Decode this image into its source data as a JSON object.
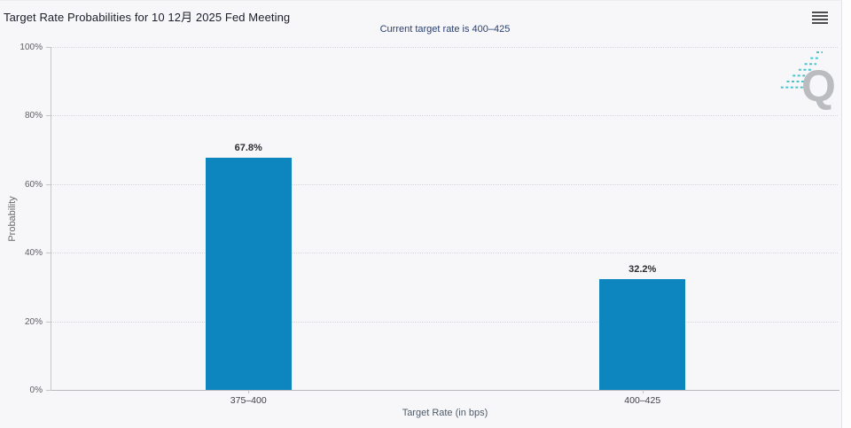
{
  "header": {
    "title": "Target Rate Probabilities for 10 12月 2025 Fed Meeting",
    "subtitle": "Current target rate is 400–425"
  },
  "chart_data": {
    "type": "bar",
    "title": "Target Rate Probabilities for 10 12月 2025 Fed Meeting",
    "subtitle": "Current target rate is 400–425",
    "categories": [
      "375–400",
      "400–425"
    ],
    "values": [
      67.8,
      32.2
    ],
    "data_labels": [
      "67.8%",
      "32.2%"
    ],
    "xlabel": "Target Rate (in bps)",
    "ylabel": "Probability",
    "ylim": [
      0,
      100
    ],
    "yticks": [
      0,
      20,
      40,
      60,
      80,
      100
    ],
    "ytick_labels": [
      "0%",
      "20%",
      "40%",
      "60%",
      "80%",
      "100%"
    ],
    "grid": true,
    "legend": false,
    "bar_color": "#0d86c0"
  },
  "icons": {
    "menu": "hamburger-menu-icon",
    "watermark": "q-logo-watermark"
  },
  "colors": {
    "bar": "#0d86c0",
    "background": "#f7f7f9",
    "title_text": "#1c1e2b",
    "subtitle_text": "#2b4170",
    "watermark_gray": "#b7b9bd",
    "watermark_teal": "#3fc3ca"
  }
}
